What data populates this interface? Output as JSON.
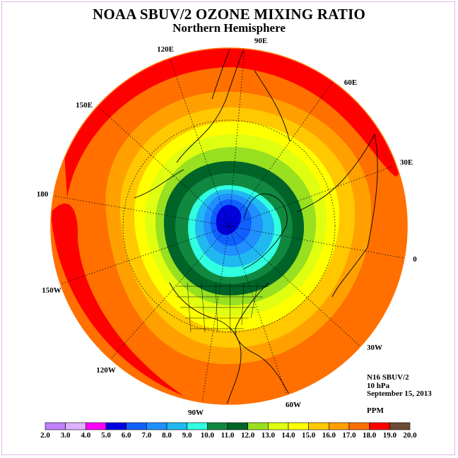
{
  "title": "NOAA SBUV/2 OZONE MIXING RATIO",
  "subtitle": "Northern Hemisphere",
  "longitude_labels": [
    "90E",
    "60E",
    "30E",
    "0",
    "30W",
    "60W",
    "90W",
    "120W",
    "150W",
    "180",
    "150E",
    "120E"
  ],
  "info": {
    "satellite": "N16 SBUV/2",
    "pressure": "10 hPa",
    "date": "September 15, 2013",
    "units": "PPM"
  },
  "colorbar": {
    "labels": [
      "2.0",
      "3.0",
      "4.0",
      "5.0",
      "6.0",
      "7.0",
      "8.0",
      "9.0",
      "10.0",
      "11.0",
      "12.0",
      "13.0",
      "14.0",
      "15.0",
      "16.0",
      "17.0",
      "18.0",
      "19.0",
      "20.0"
    ],
    "colors": [
      "#c080ff",
      "#e0b0ff",
      "#ff00ff",
      "#0000e0",
      "#1060ff",
      "#2090ff",
      "#20b8f0",
      "#30ffe0",
      "#108840",
      "#006428",
      "#98e020",
      "#e0ff10",
      "#ffff00",
      "#ffc800",
      "#ffa000",
      "#ff7000",
      "#ff0000",
      "#6e4b34"
    ]
  }
}
